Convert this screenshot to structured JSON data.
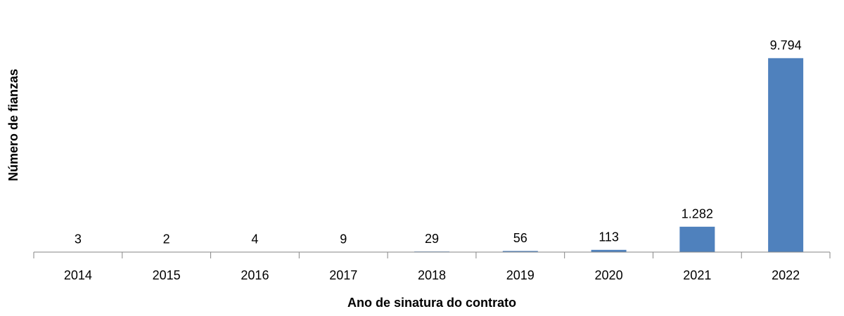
{
  "chart_data": {
    "type": "bar",
    "x_label": "Ano de sinatura do contrato",
    "y_label": "Número de fianzas",
    "categories": [
      "2014",
      "2015",
      "2016",
      "2017",
      "2018",
      "2019",
      "2020",
      "2021",
      "2022"
    ],
    "values": [
      3,
      2,
      4,
      9,
      29,
      56,
      113,
      1282,
      9794
    ],
    "value_labels": [
      "3",
      "2",
      "4",
      "9",
      "29",
      "56",
      "113",
      "1.282",
      "9.794"
    ],
    "color": "#4f81bd",
    "ylim": [
      0,
      10000
    ]
  }
}
